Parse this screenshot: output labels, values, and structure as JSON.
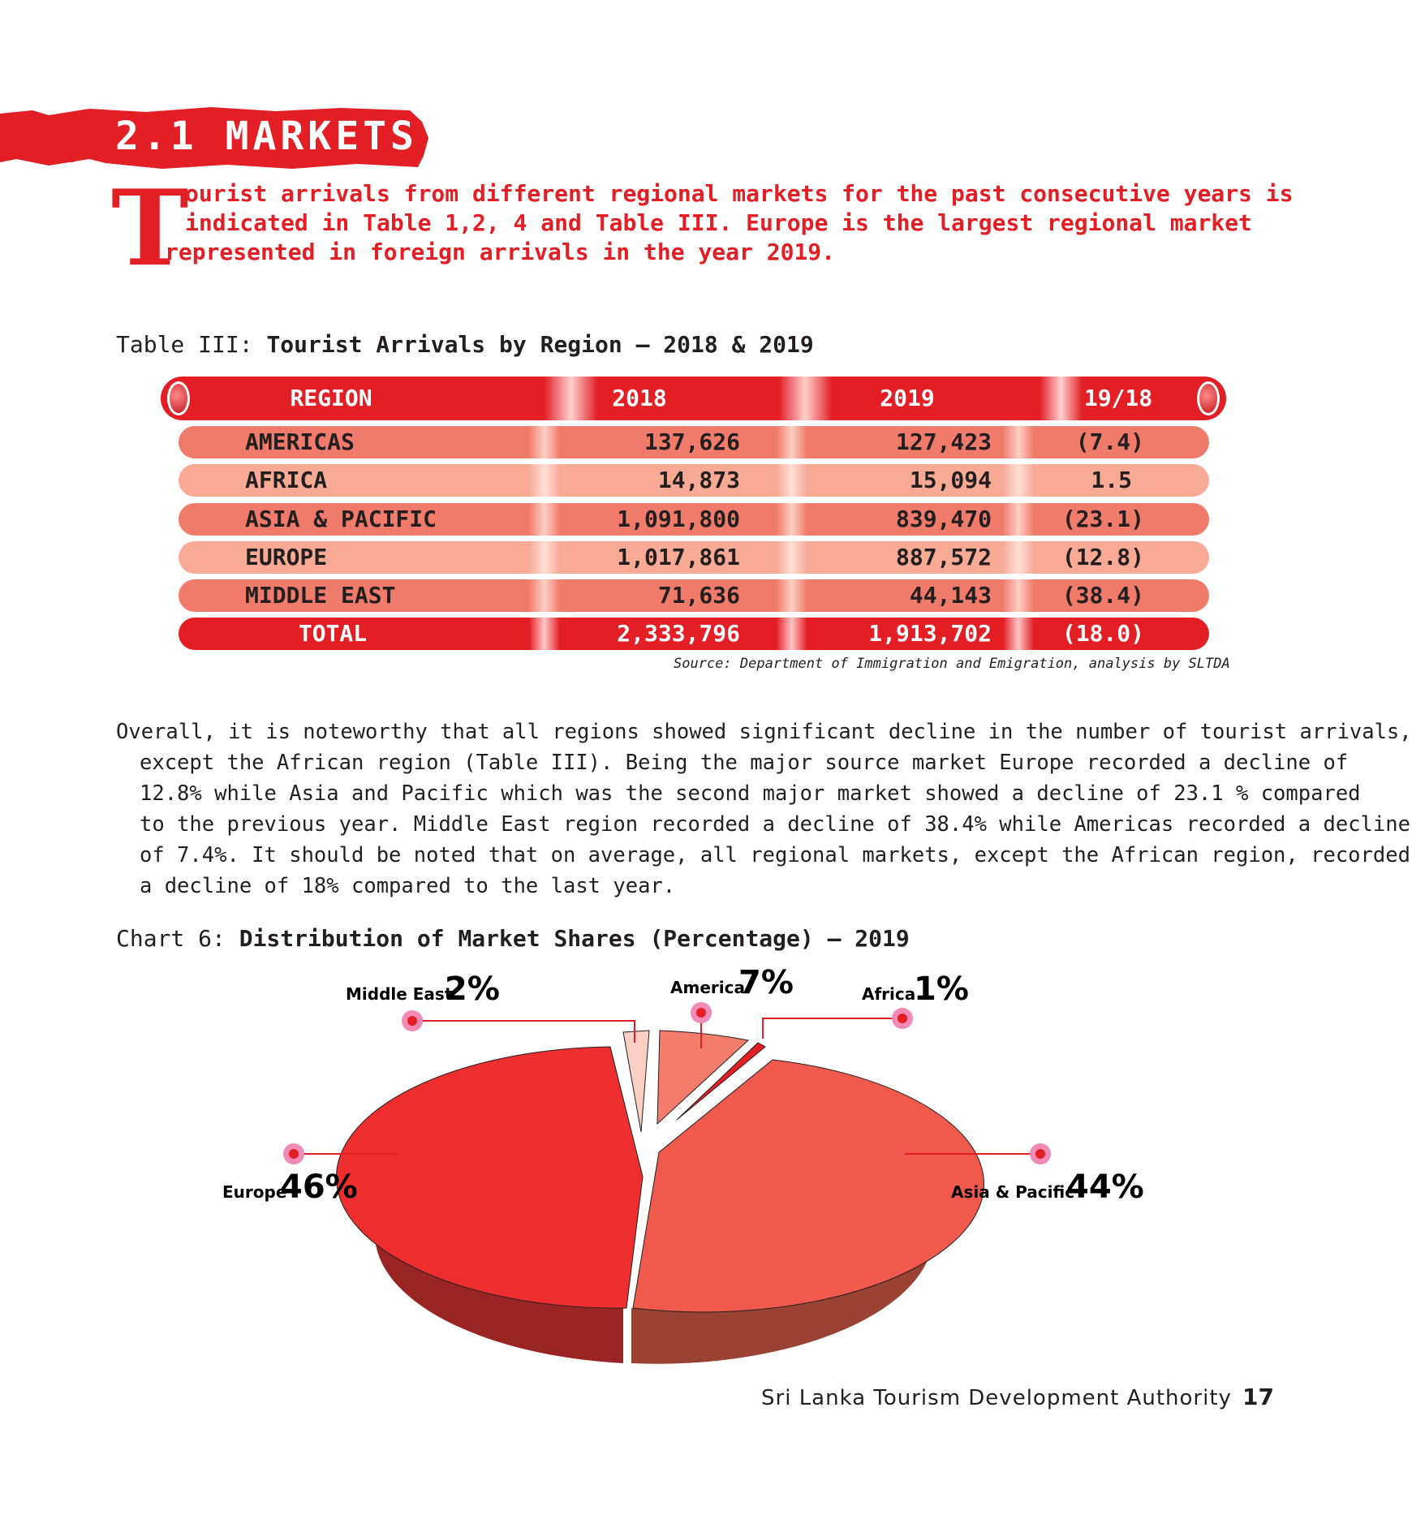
{
  "section": {
    "title": "2.1 MARKETS"
  },
  "intro": {
    "drop_cap": "T",
    "lines": [
      "ourist arrivals from different regional markets for the past consecutive years is",
      "indicated in Table 1,2, 4 and Table III. Europe is the largest regional market",
      "represented in foreign arrivals in the year 2019."
    ]
  },
  "table": {
    "caption_prefix": "Table III:",
    "caption_title": "Tourist Arrivals by Region – 2018 & 2019",
    "headers": [
      "REGION",
      "2018",
      "2019",
      "19/18"
    ],
    "rows": [
      {
        "region": "AMERICAS",
        "y2018": "137,626",
        "y2019": "127,423",
        "change": "(7.4)"
      },
      {
        "region": "AFRICA",
        "y2018": "14,873",
        "y2019": "15,094",
        "change": "1.5"
      },
      {
        "region": "ASIA & PACIFIC",
        "y2018": "1,091,800",
        "y2019": "839,470",
        "change": "(23.1)"
      },
      {
        "region": "EUROPE",
        "y2018": "1,017,861",
        "y2019": "887,572",
        "change": "(12.8)"
      },
      {
        "region": "MIDDLE EAST",
        "y2018": "71,636",
        "y2019": "44,143",
        "change": "(38.4)"
      }
    ],
    "total": {
      "region": "TOTAL",
      "y2018": "2,333,796",
      "y2019": "1,913,702",
      "change": "(18.0)"
    },
    "source": "Source: Department of Immigration and Emigration, analysis by SLTDA"
  },
  "body": {
    "lines": [
      "Overall, it is noteworthy that all regions showed significant decline in the number of tourist arrivals,",
      "except the African region (Table III). Being the major source market Europe recorded a decline of",
      "12.8% while Asia and Pacific which was the second major market showed a decline of 23.1 % compared",
      "to the previous year. Middle East region recorded a decline of 38.4% while Americas recorded a decline",
      "of 7.4%. It should be noted that on average, all regional markets, except the African region, recorded",
      "a decline of 18% compared to the last year."
    ]
  },
  "chart": {
    "caption_prefix": "Chart 6:",
    "caption_title": "Distribution of Market Shares (Percentage) – 2019"
  },
  "chart_data": {
    "type": "pie",
    "title": "Distribution of Market Shares (Percentage) – 2019",
    "slices": [
      {
        "name": "Middle East",
        "label": "2%",
        "value": 2,
        "color": "#fbcfc4"
      },
      {
        "name": "America",
        "label": "7%",
        "value": 7,
        "color": "#f37d6a"
      },
      {
        "name": "Africa",
        "label": "1%",
        "value": 1,
        "color": "#e31e24"
      },
      {
        "name": "Asia & Pacific",
        "label": "44%",
        "value": 44,
        "color": "#ef5a4c"
      },
      {
        "name": "Europe",
        "label": "46%",
        "value": 46,
        "color": "#ee2e2e"
      }
    ]
  },
  "footer": {
    "organization": "Sri Lanka Tourism Development Authority",
    "page_number": "17"
  }
}
